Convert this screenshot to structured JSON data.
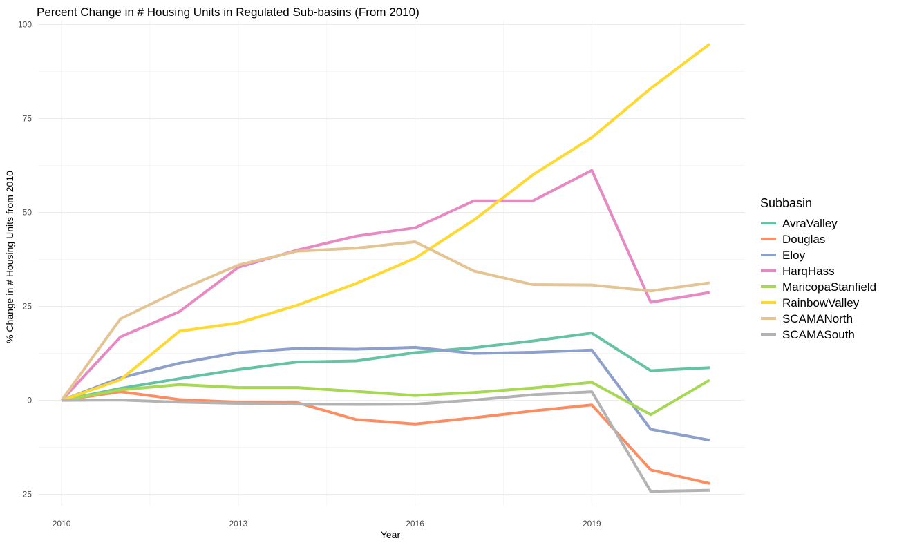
{
  "chart_data": {
    "type": "line",
    "title": "Percent Change in # Housing Units in Regulated Sub-basins (From 2010)",
    "xlabel": "Year",
    "ylabel": "% Change in # Housing Units from 2010",
    "xlim": [
      2009.6,
      2021.6
    ],
    "ylim": [
      -28,
      101
    ],
    "x_ticks": [
      "2010",
      "2013",
      "2016",
      "2019"
    ],
    "y_ticks": [
      "-25",
      "0",
      "25",
      "50",
      "75",
      "100"
    ],
    "grid": true,
    "legend_title": "Subbasin",
    "legend_position": "right",
    "x": [
      2010,
      2011,
      2012,
      2013,
      2014,
      2015,
      2016,
      2017,
      2018,
      2019,
      2020,
      2021
    ],
    "series": [
      {
        "name": "AvraValley",
        "color": "#66C2A5",
        "values": [
          0,
          3.2,
          5.8,
          8.2,
          10.2,
          10.5,
          12.7,
          14,
          15.8,
          17.9,
          7.9,
          8.7
        ]
      },
      {
        "name": "Douglas",
        "color": "#FC8D62",
        "values": [
          0,
          2.3,
          0.2,
          -0.5,
          -0.6,
          -5.1,
          -6.3,
          -4.6,
          -2.8,
          -1.2,
          -18.5,
          -22.1
        ]
      },
      {
        "name": "Eloy",
        "color": "#8DA0CB",
        "values": [
          0,
          6,
          9.9,
          12.7,
          13.8,
          13.6,
          14.1,
          12.5,
          12.8,
          13.4,
          -7.7,
          -10.6
        ]
      },
      {
        "name": "HarqHass",
        "color": "#E78AC3",
        "values": [
          0,
          16.9,
          23.6,
          35.4,
          40,
          43.7,
          45.9,
          53.1,
          53.1,
          61.2,
          26.1,
          28.7
        ]
      },
      {
        "name": "MaricopaStanfield",
        "color": "#A6D854",
        "values": [
          0,
          2.8,
          4.2,
          3.4,
          3.4,
          2.4,
          1.3,
          2.1,
          3.3,
          4.8,
          -3.8,
          5.4
        ]
      },
      {
        "name": "RainbowValley",
        "color": "#FFD92F",
        "values": [
          0,
          5.5,
          18.4,
          20.6,
          25.3,
          31.1,
          37.8,
          48,
          60,
          69.9,
          83,
          94.8
        ]
      },
      {
        "name": "SCAMANorth",
        "color": "#E5C494",
        "values": [
          0,
          21.7,
          29.3,
          36,
          39.7,
          40.5,
          42.2,
          34.4,
          30.8,
          30.7,
          29.1,
          31.3
        ]
      },
      {
        "name": "SCAMASouth",
        "color": "#B3B3B3",
        "values": [
          0,
          0.1,
          -0.5,
          -0.8,
          -1,
          -1.1,
          -1,
          0.1,
          1.5,
          2.3,
          -24.2,
          -23.9
        ]
      }
    ]
  }
}
